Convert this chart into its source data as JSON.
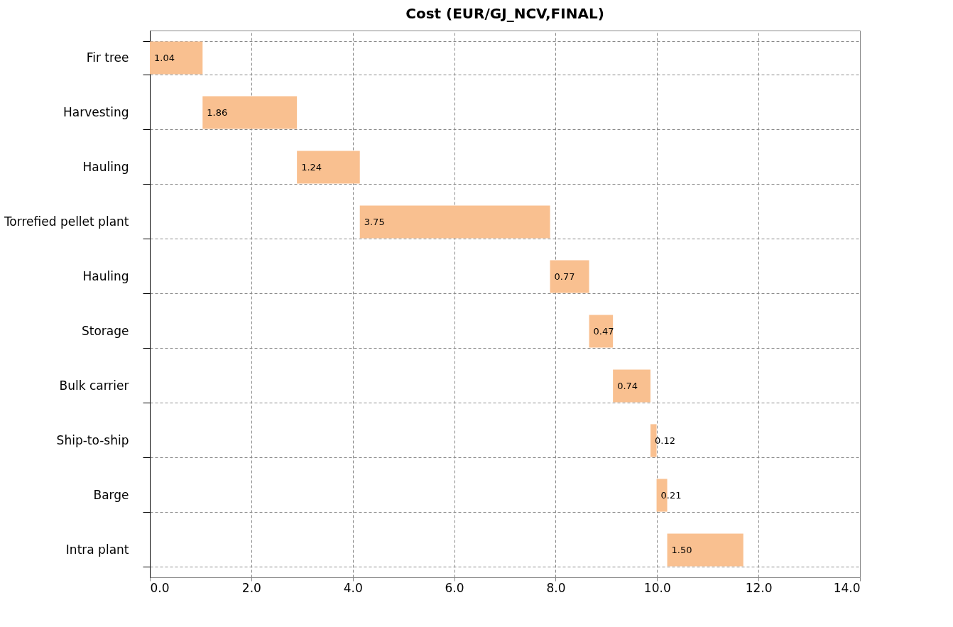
{
  "chart_data": {
    "type": "bar",
    "orientation": "horizontal",
    "title": "Cost (EUR/GJ_NCV,FINAL)",
    "categories": [
      "Fir tree",
      "Harvesting",
      "Hauling",
      "Torrefied pellet plant",
      "Hauling",
      "Storage",
      "Bulk carrier",
      "Ship-to-ship",
      "Barge",
      "Intra plant"
    ],
    "values": [
      1.04,
      1.86,
      1.24,
      3.75,
      0.77,
      0.47,
      0.74,
      0.12,
      0.21,
      1.5
    ],
    "base": [
      0,
      1.04,
      2.9,
      4.14,
      7.89,
      8.66,
      9.13,
      9.87,
      9.99,
      10.2
    ],
    "value_labels": [
      "1.04",
      "1.86",
      "1.24",
      "3.75",
      "0.77",
      "0.47",
      "0.74",
      "0.12",
      "0.21",
      "1.50"
    ],
    "color": "#f9c090",
    "xlim": [
      0,
      14
    ],
    "xticks": [
      {
        "value": 0,
        "label": "0.0"
      },
      {
        "value": 2,
        "label": "2.0"
      },
      {
        "value": 4,
        "label": "4.0"
      },
      {
        "value": 6,
        "label": "6.0"
      },
      {
        "value": 8,
        "label": "8.0"
      },
      {
        "value": 10,
        "label": "10.0"
      },
      {
        "value": 12,
        "label": "12.0"
      },
      {
        "value": 14,
        "label": "14.0"
      }
    ],
    "grid": true
  }
}
